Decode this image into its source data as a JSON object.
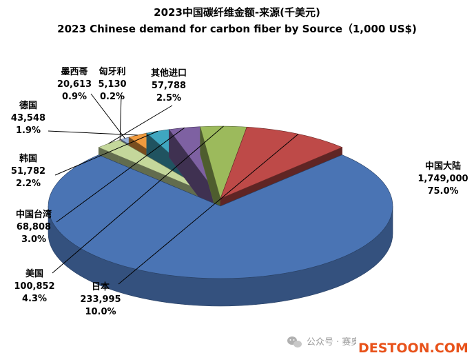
{
  "chart_data": {
    "type": "pie",
    "title": "2023中国碳纤维金额-来源(千美元)",
    "subtitle": "2023 Chinese demand for carbon fiber by Source（1,000 US$)",
    "unit": "1,000 US$",
    "slices": [
      {
        "name": "中国大陆",
        "value_text": "1,749,000",
        "percent_text": "75.0%",
        "value": 1749000,
        "percent": 75.0,
        "color": "#4A74B4"
      },
      {
        "name": "日本",
        "value_text": "233,995",
        "percent_text": "10.0%",
        "value": 233995,
        "percent": 10.0,
        "color": "#BE4A48"
      },
      {
        "name": "美国",
        "value_text": "100,852",
        "percent_text": "4.3%",
        "value": 100852,
        "percent": 4.3,
        "color": "#9CBA5C"
      },
      {
        "name": "中国台湾",
        "value_text": "68,808",
        "percent_text": "3.0%",
        "value": 68808,
        "percent": 3.0,
        "color": "#7E61A2"
      },
      {
        "name": "韩国",
        "value_text": "51,782",
        "percent_text": "2.2%",
        "value": 51782,
        "percent": 2.2,
        "color": "#3FA6C0"
      },
      {
        "name": "德国",
        "value_text": "43,548",
        "percent_text": "1.9%",
        "value": 43548,
        "percent": 1.9,
        "color": "#F09A3E"
      },
      {
        "name": "墨西哥",
        "value_text": "20,613",
        "percent_text": "0.9%",
        "value": 20613,
        "percent": 0.9,
        "color": "#97B0D8"
      },
      {
        "name": "匈牙利",
        "value_text": "5,130",
        "percent_text": "0.2%",
        "value": 5130,
        "percent": 0.2,
        "color": "#D99694"
      },
      {
        "name": "其他进口",
        "value_text": "57,788",
        "percent_text": "2.5%",
        "value": 57788,
        "percent": 2.5,
        "color": "#C4D79B"
      }
    ]
  },
  "watermark": {
    "wechat_icon": "wechat-icon",
    "text": "公众号 · 赛奥碳纤维技术",
    "brand_text": "DESTOON.COM",
    "brand_color": "#E8521A"
  }
}
